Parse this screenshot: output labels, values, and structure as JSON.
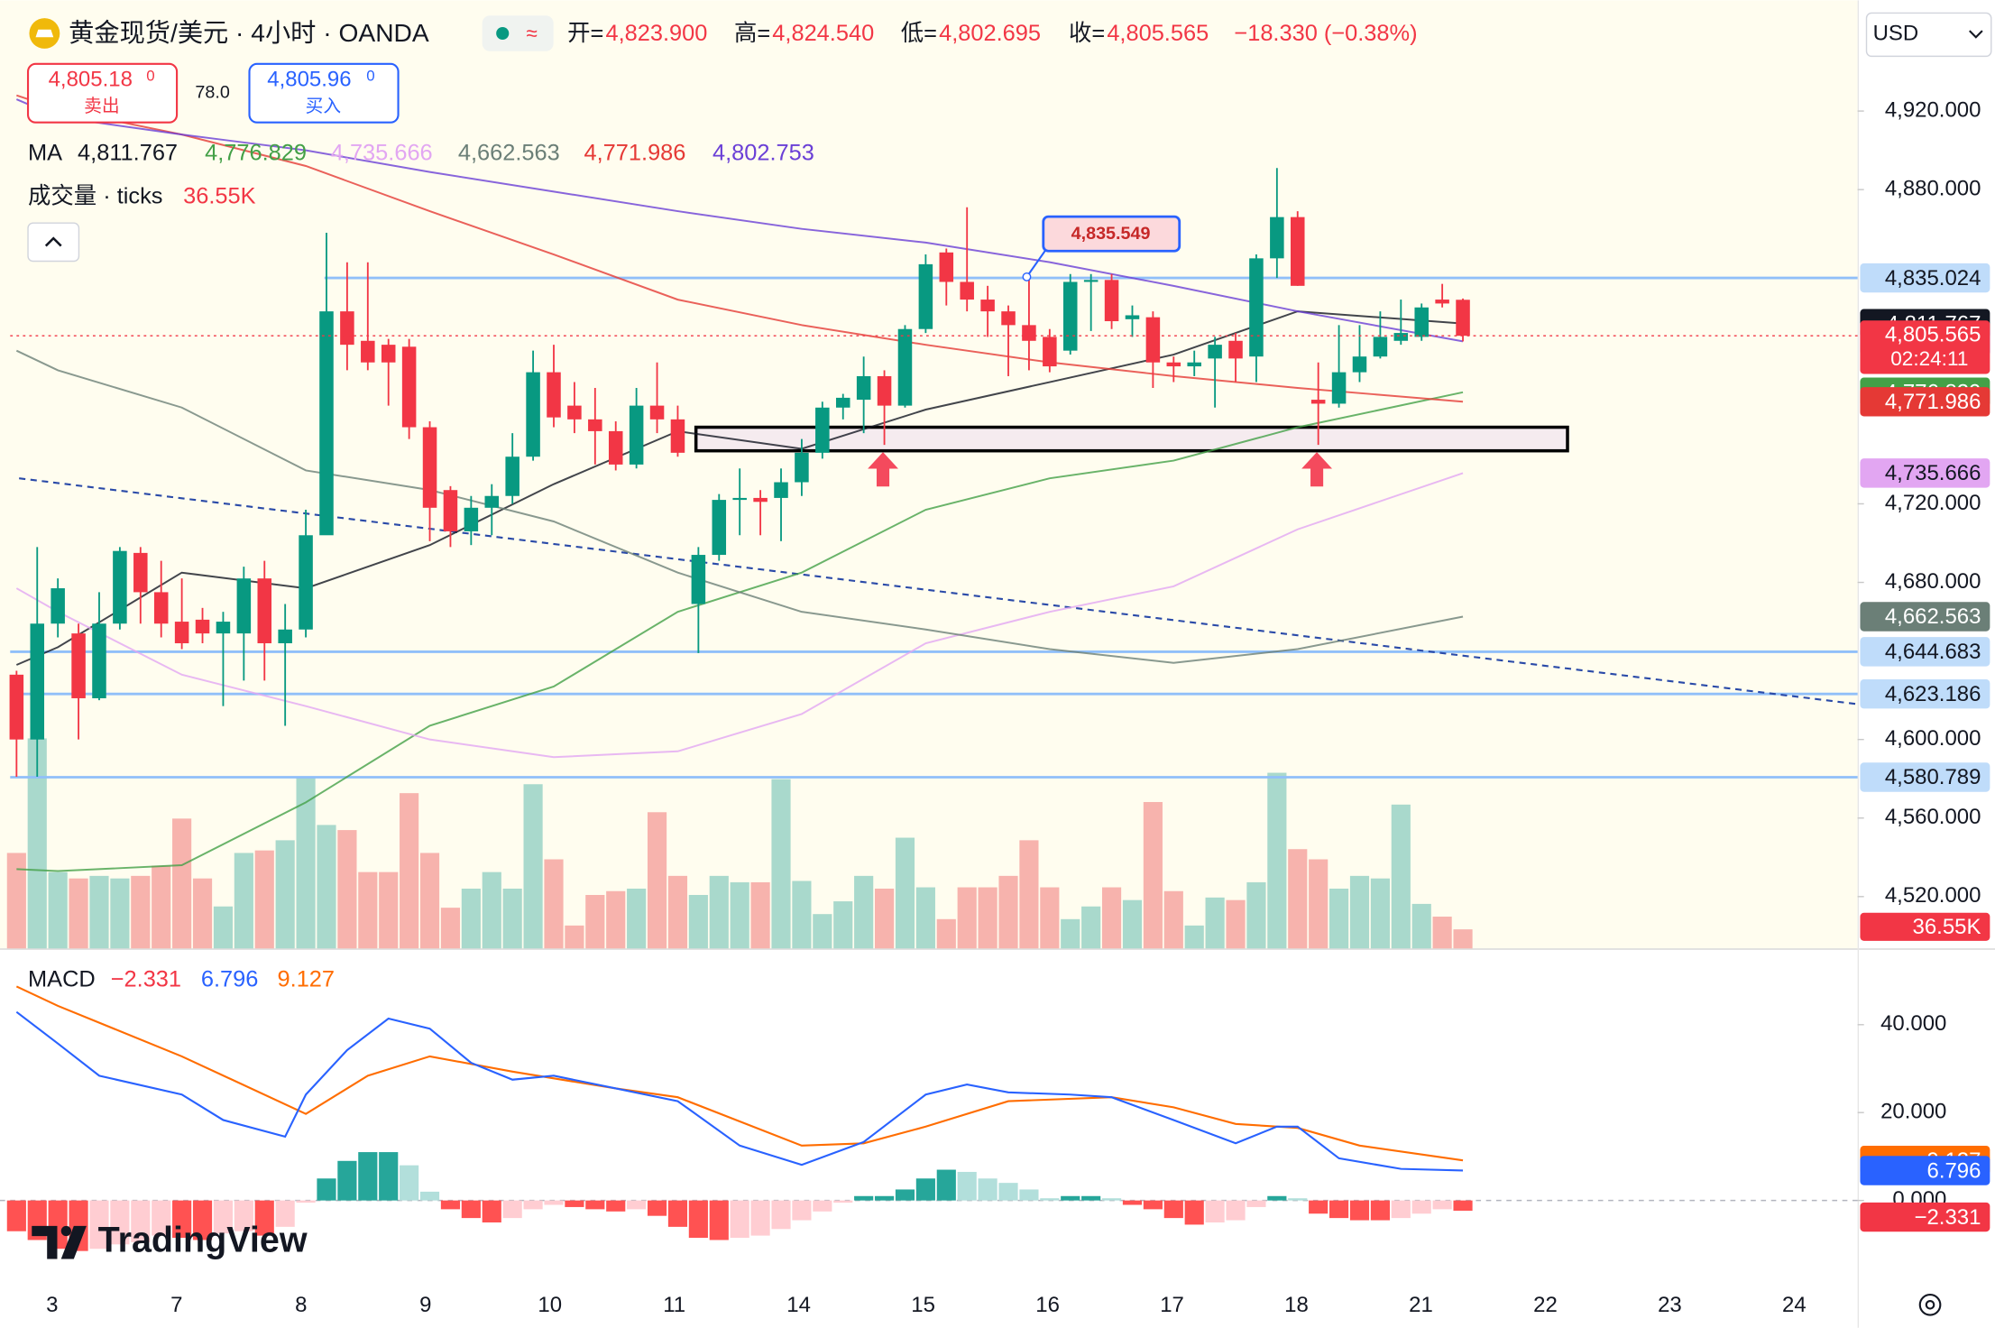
{
  "header": {
    "symbol": "黄金现货/美元 · 4小时 · OANDA",
    "open_label": "开=",
    "open": "4,823.900",
    "high_label": "高=",
    "high": "4,824.540",
    "low_label": "低=",
    "low": "4,802.695",
    "close_label": "收=",
    "close": "4,805.565",
    "change": "−18.330 (−0.38%)"
  },
  "trade": {
    "sell_price": "4,805.18",
    "sell_sup": "0",
    "sell_label": "卖出",
    "spread": "78.0",
    "buy_price": "4,805.96",
    "buy_sup": "0",
    "buy_label": "买入"
  },
  "currency": "USD",
  "brand": "TradingView",
  "chart_data": [
    {
      "type": "candlestick",
      "x_labels": [
        "3",
        "7",
        "8",
        "9",
        "10",
        "11",
        "14",
        "15",
        "16",
        "17",
        "18",
        "21",
        "22",
        "23",
        "24"
      ],
      "up_color": "#089981",
      "down_color": "#f23645",
      "ylim": [
        4493.6,
        4976.4
      ],
      "yticks": [
        {
          "value": 4920,
          "label": "4,920.000"
        },
        {
          "value": 4880,
          "label": "4,880.000"
        },
        {
          "value": 4720,
          "label": "4,720.000"
        },
        {
          "value": 4680,
          "label": "4,680.000"
        },
        {
          "value": 4600,
          "label": "4,600.000"
        },
        {
          "value": 4560,
          "label": "4,560.000"
        },
        {
          "value": 4520,
          "label": "4,520.000"
        }
      ],
      "candles": {
        "open": [
          4633,
          4600,
          4659,
          4654,
          4621,
          4659,
          4695,
          4675,
          4660,
          4661,
          4654,
          4654,
          4682,
          4649,
          4656,
          4704,
          4818,
          4803,
          4801,
          4800,
          4759,
          4727,
          4706,
          4718,
          4724,
          4744,
          4787,
          4770,
          4763,
          4757,
          4740,
          4770,
          4763,
          4669,
          4694,
          4722,
          4723,
          4723,
          4731,
          4746,
          4769,
          4773,
          4785,
          4770,
          4809,
          4848,
          4833,
          4824,
          4818,
          4811,
          4805,
          4798,
          4833,
          4834,
          4814,
          4815,
          4792,
          4790,
          4794,
          4803,
          4795,
          4845,
          4866,
          4773,
          4771,
          4787,
          4795,
          4803,
          4805,
          4824,
          4823.9
        ],
        "high": [
          4635,
          4698,
          4682,
          4659,
          4675,
          4698,
          4698,
          4691,
          4682,
          4667,
          4665,
          4688,
          4691,
          4669,
          4717,
          4858,
          4843,
          4843,
          4804,
          4804,
          4762,
          4729,
          4724,
          4730,
          4756,
          4798,
          4801,
          4782,
          4779,
          4762,
          4779,
          4792,
          4770,
          4698,
          4725,
          4738,
          4727,
          4738,
          4753,
          4772,
          4776,
          4795,
          4788,
          4811,
          4847,
          4850,
          4871,
          4831,
          4821,
          4834,
          4809,
          4837,
          4837,
          4837,
          4821,
          4818,
          4795,
          4798,
          4805,
          4807,
          4847,
          4891,
          4869,
          4792,
          4811,
          4811,
          4818,
          4824,
          4822,
          4832,
          4824.54
        ],
        "low": [
          4581,
          4581,
          4652,
          4600,
          4620,
          4656,
          4659,
          4652,
          4646,
          4649,
          4617,
          4630,
          4630,
          4607,
          4652,
          4714,
          4788,
          4788,
          4770,
          4753,
          4701,
          4698,
          4699,
          4704,
          4720,
          4742,
          4759,
          4756,
          4740,
          4737,
          4738,
          4756,
          4744,
          4644,
          4691,
          4704,
          4704,
          4701,
          4724,
          4743,
          4763,
          4756,
          4750,
          4769,
          4807,
          4821,
          4818,
          4805,
          4785,
          4788,
          4787,
          4796,
          4808,
          4809,
          4805,
          4779,
          4782,
          4785,
          4769,
          4782,
          4782,
          4835,
          4831,
          4750,
          4769,
          4782,
          4794,
          4801,
          4803,
          4820,
          4802.695
        ],
        "close": [
          4600,
          4659,
          4677,
          4621,
          4659,
          4696,
          4675,
          4659,
          4649,
          4654,
          4660,
          4682,
          4649,
          4656,
          4704,
          4818,
          4801,
          4792,
          4792,
          4759,
          4718,
          4706,
          4718,
          4724,
          4744,
          4787,
          4764,
          4763,
          4757,
          4740,
          4770,
          4763,
          4746,
          4694,
          4722,
          4723,
          4721,
          4731,
          4746,
          4769,
          4774,
          4785,
          4770,
          4809,
          4842,
          4833,
          4824,
          4818,
          4811,
          4803,
          4790,
          4833,
          4834,
          4813,
          4816,
          4792,
          4790,
          4792,
          4801,
          4794,
          4845,
          4866,
          4831,
          4771,
          4787,
          4795,
          4805,
          4807,
          4820,
          4822,
          4805.565
        ]
      },
      "ma": {
        "name": "MA",
        "series": [
          {
            "color": "#131722",
            "label": "4,811.767",
            "x": [
              0,
              2,
              8,
              14,
              20,
              26,
              32,
              38,
              44,
              50,
              56,
              62,
              70
            ],
            "values": [
              4638,
              4647,
              4685,
              4677,
              4699,
              4730,
              4757,
              4748,
              4768,
              4782,
              4796,
              4818,
              4811.767
            ]
          },
          {
            "color": "#43a047",
            "label": "4,776.829",
            "x": [
              0,
              2,
              8,
              14,
              20,
              26,
              32,
              38,
              44,
              50,
              56,
              62,
              70
            ],
            "values": [
              4534,
              4533,
              4536,
              4568,
              4607,
              4627,
              4665,
              4685,
              4717,
              4733,
              4742,
              4759,
              4776.829
            ]
          },
          {
            "color": "#e2a6f2",
            "label": "4,735.666",
            "x": [
              0,
              2,
              8,
              14,
              20,
              26,
              32,
              38,
              44,
              50,
              56,
              62,
              70
            ],
            "values": [
              4677,
              4665,
              4633,
              4617,
              4600,
              4591,
              4594,
              4613,
              4649,
              4665,
              4678,
              4707,
              4735.666
            ]
          },
          {
            "color": "#6b7f77",
            "label": "4,662.563",
            "x": [
              0,
              2,
              8,
              14,
              20,
              26,
              32,
              38,
              44,
              50,
              56,
              62,
              70
            ],
            "values": [
              4798,
              4788,
              4769,
              4737,
              4727,
              4711,
              4685,
              4665,
              4656,
              4646,
              4639,
              4646,
              4662.563
            ]
          },
          {
            "color": "#e53935",
            "label": "4,771.986",
            "x": [
              0,
              2,
              8,
              14,
              20,
              26,
              32,
              38,
              44,
              50,
              56,
              62,
              70
            ],
            "values": [
              4928,
              4921,
              4908,
              4892,
              4869,
              4847,
              4824,
              4811,
              4801,
              4792,
              4785,
              4779,
              4771.986
            ]
          },
          {
            "color": "#6a3fd6",
            "label": "4,802.753",
            "x": [
              0,
              2,
              8,
              14,
              20,
              26,
              32,
              38,
              44,
              50,
              56,
              62,
              70
            ],
            "values": [
              4926,
              4917,
              4908,
              4900,
              4889,
              4879,
              4869,
              4860,
              4853,
              4843,
              4831,
              4818,
              4802.753
            ]
          }
        ]
      },
      "volume": {
        "title": "成交量 · ticks",
        "value_label": "36.55K",
        "ylim": [
          0,
          1815000
        ],
        "values": [
          182800,
          402100,
          146200,
          134000,
          138900,
          134000,
          138900,
          158400,
          248600,
          134000,
          80400,
          182800,
          187600,
          207100,
          329000,
          236400,
          226600,
          146200,
          146200,
          297300,
          182800,
          78000,
          114500,
          146200,
          114500,
          314400,
          170600,
          43900,
          102400,
          109700,
          114500,
          260800,
          138900,
          102400,
          138900,
          126700,
          126700,
          324100,
          129200,
          65800,
          90200,
          138900,
          114500,
          212000,
          117000,
          56100,
          117000,
          117000,
          138900,
          207100,
          117000,
          56100,
          80400,
          117000,
          92600,
          280300,
          109700,
          43900,
          97500,
          92600,
          126700,
          336300,
          190100,
          170600,
          114500,
          138900,
          134000,
          275400,
          85300,
          60900,
          36550
        ]
      },
      "price_lines": [
        {
          "value": 4835.024,
          "label": "4,835.024"
        },
        {
          "value": 4644.683,
          "label": "4,644.683"
        },
        {
          "value": 4623.186,
          "label": "4,623.186"
        },
        {
          "value": 4580.789,
          "label": "4,580.789"
        }
      ],
      "current_price": {
        "value": 4805.565,
        "label": "4,805.565",
        "countdown": "02:24:11"
      },
      "trend_line": [
        4733,
        4618
      ],
      "zone": [
        4759,
        4747
      ],
      "callout": {
        "value": 4835.549,
        "label": "4,835.549"
      }
    },
    {
      "type": "macd",
      "title": "MACD",
      "ylim": [
        -19.4,
        55.9
      ],
      "yticks": [
        {
          "value": 40,
          "label": "40.000"
        },
        {
          "value": 20,
          "label": "20.000"
        },
        {
          "value": 0,
          "label": "0.000"
        }
      ],
      "histogram": {
        "label": "−2.331",
        "values": [
          -7,
          -9,
          -11,
          -11.5,
          -11,
          -10,
          -9.5,
          -8,
          -8.5,
          -9,
          -7.5,
          -7,
          -8,
          -6,
          -0.5,
          5,
          9,
          11,
          11,
          8,
          2,
          -2,
          -4,
          -5,
          -4,
          -2,
          -1,
          -1.5,
          -2,
          -2.5,
          -2,
          -3.5,
          -6,
          -8.5,
          -9,
          -8.5,
          -8,
          -6.5,
          -4.5,
          -2.5,
          -0.5,
          1,
          1,
          2.5,
          5,
          7,
          6.5,
          5,
          4,
          2.5,
          0.5,
          1,
          1,
          0.5,
          -1,
          -2,
          -4,
          -5.5,
          -5,
          -4.5,
          -1.5,
          1,
          0.5,
          -3,
          -4,
          -4.5,
          -4.5,
          -4,
          -3,
          -2,
          -2.331
        ]
      },
      "macd": {
        "color": "#2962ff",
        "label": "6.796",
        "x": [
          0,
          2,
          4,
          8,
          10,
          13,
          14,
          16,
          18,
          20,
          22,
          24,
          26,
          29,
          32,
          35,
          38,
          41,
          44,
          46,
          48,
          51,
          53,
          56,
          59,
          61,
          62,
          64,
          67,
          70
        ],
        "values": [
          42.9,
          35.7,
          28.4,
          24.1,
          18.3,
          14.5,
          24.1,
          34.2,
          41.4,
          39.1,
          31.3,
          27.5,
          28.4,
          25.5,
          22.6,
          12.5,
          8.1,
          13.3,
          24.1,
          26.4,
          24.6,
          24.1,
          23.5,
          18.3,
          13.0,
          16.8,
          16.8,
          9.6,
          7.2,
          6.796
        ]
      },
      "signal": {
        "color": "#ff6d00",
        "label": "9.127",
        "x": [
          0,
          2,
          8,
          14,
          17,
          20,
          24,
          29,
          32,
          38,
          41,
          44,
          48,
          53,
          56,
          59,
          62,
          65,
          70
        ],
        "values": [
          48.7,
          44.3,
          32.8,
          19.7,
          28.4,
          32.8,
          29.3,
          25.5,
          23.5,
          12.5,
          13.0,
          16.8,
          22.6,
          23.5,
          21.2,
          17.4,
          16.5,
          12.5,
          9.127
        ]
      }
    }
  ]
}
